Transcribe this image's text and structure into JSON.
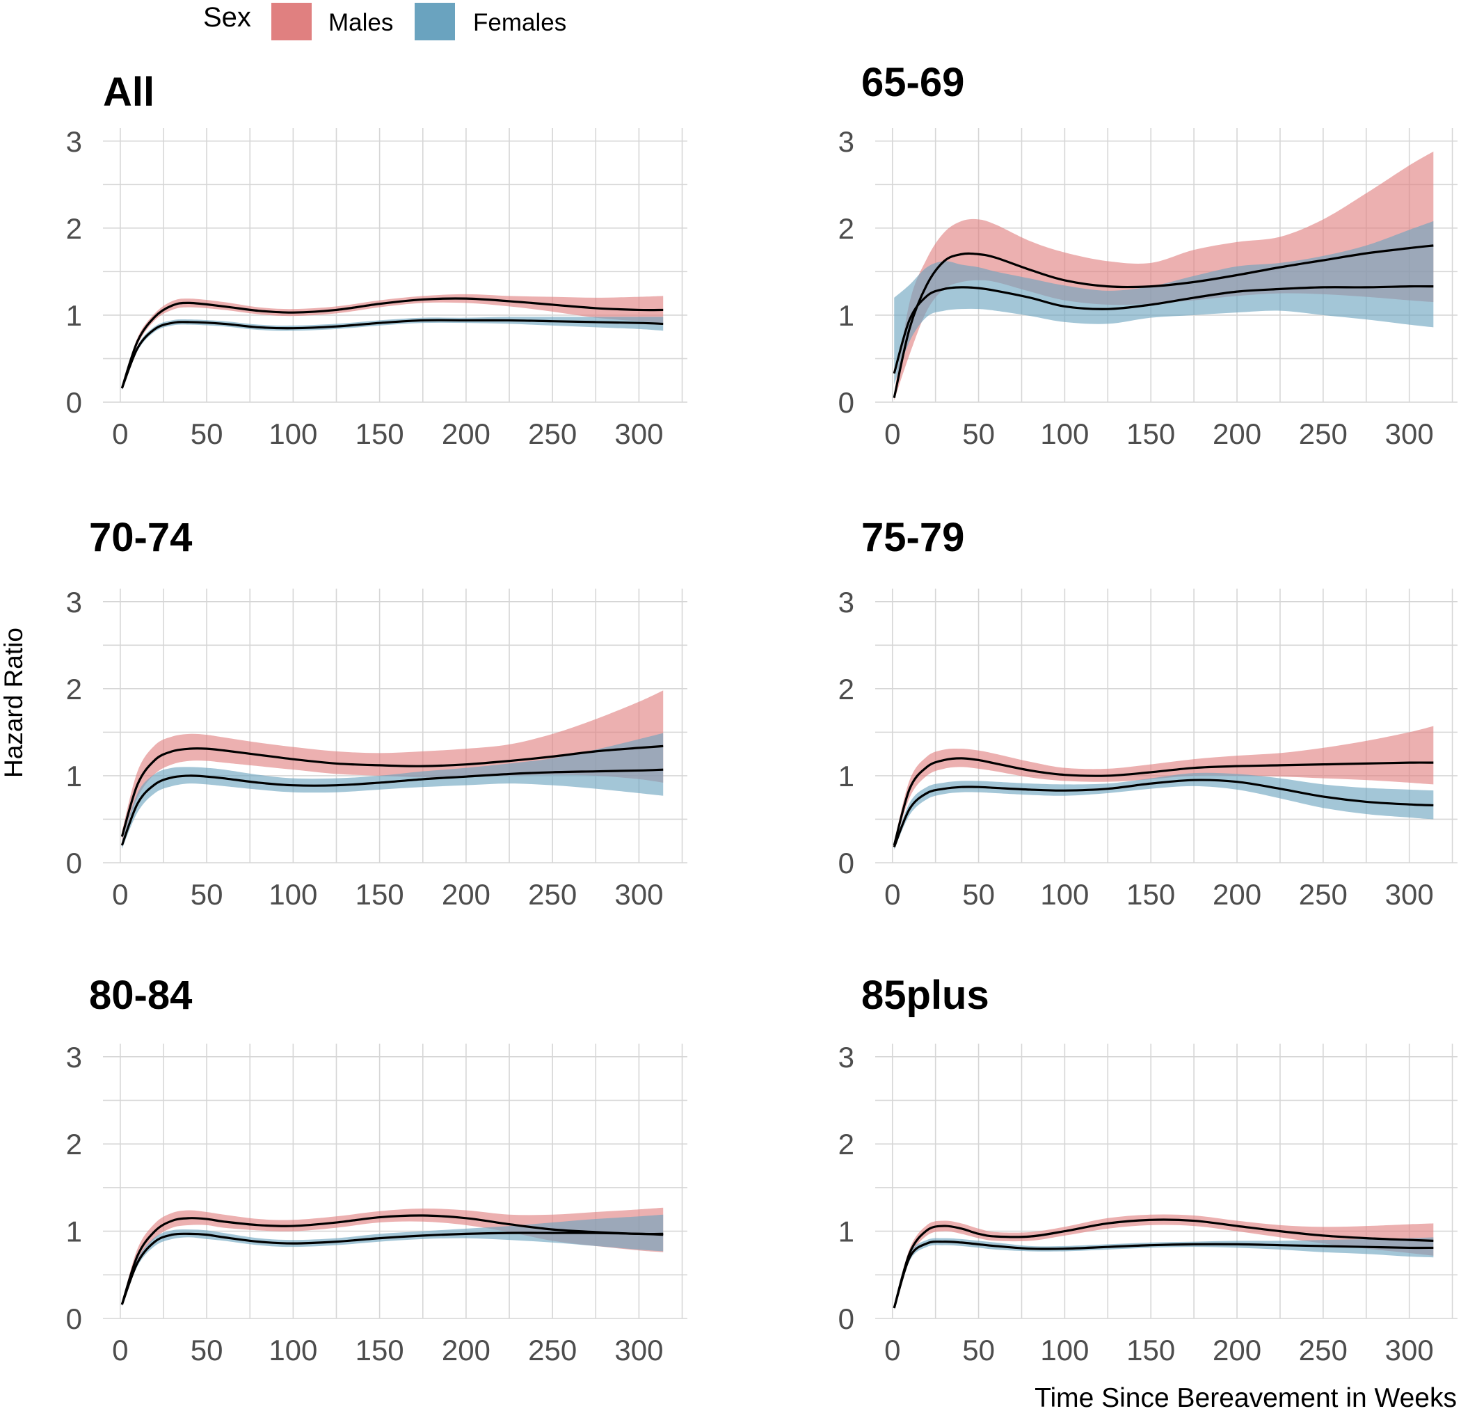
{
  "legend": {
    "title": "Sex",
    "entries": [
      {
        "label": "Males",
        "color": "#E08080"
      },
      {
        "label": "Females",
        "color": "#6AA3BF"
      }
    ]
  },
  "y_axis_title": "Hazard Ratio",
  "x_axis_title": "Time Since Bereavement in Weeks",
  "colors": {
    "male": "#E08080",
    "female": "#6AA3BF",
    "line": "#000000",
    "grid": "#D6D6D6",
    "tick": "#4D4D4D"
  },
  "chart_data": [
    {
      "type": "line",
      "title": "All",
      "xticks": [
        0,
        50,
        100,
        150,
        200,
        250,
        300
      ],
      "yticks": [
        0,
        1,
        2,
        3
      ],
      "xlim": [
        -10,
        328
      ],
      "ylim": [
        0,
        3.15
      ],
      "series": [
        {
          "name": "Males",
          "x": [
            1,
            10,
            20,
            30,
            40,
            60,
            80,
            100,
            125,
            150,
            175,
            200,
            225,
            250,
            275,
            300,
            314
          ],
          "y": [
            0.16,
            0.7,
            0.98,
            1.11,
            1.14,
            1.1,
            1.05,
            1.03,
            1.06,
            1.13,
            1.18,
            1.19,
            1.16,
            1.12,
            1.08,
            1.06,
            1.06
          ],
          "lower": [
            0.14,
            0.66,
            0.94,
            1.06,
            1.09,
            1.06,
            1.01,
            0.99,
            1.02,
            1.09,
            1.14,
            1.14,
            1.1,
            1.04,
            0.97,
            0.93,
            0.91
          ],
          "upper": [
            0.18,
            0.74,
            1.02,
            1.16,
            1.19,
            1.15,
            1.09,
            1.07,
            1.1,
            1.17,
            1.22,
            1.24,
            1.22,
            1.21,
            1.2,
            1.21,
            1.22
          ]
        },
        {
          "name": "Females",
          "x": [
            1,
            10,
            20,
            30,
            40,
            60,
            80,
            100,
            125,
            150,
            175,
            200,
            225,
            250,
            275,
            300,
            314
          ],
          "y": [
            0.16,
            0.62,
            0.84,
            0.91,
            0.92,
            0.9,
            0.86,
            0.85,
            0.87,
            0.91,
            0.94,
            0.94,
            0.94,
            0.93,
            0.92,
            0.91,
            0.9
          ],
          "lower": [
            0.14,
            0.59,
            0.81,
            0.88,
            0.89,
            0.87,
            0.83,
            0.82,
            0.84,
            0.88,
            0.91,
            0.91,
            0.9,
            0.88,
            0.86,
            0.84,
            0.82
          ],
          "upper": [
            0.18,
            0.65,
            0.87,
            0.94,
            0.95,
            0.93,
            0.89,
            0.88,
            0.9,
            0.94,
            0.97,
            0.97,
            0.98,
            0.98,
            0.98,
            0.98,
            0.98
          ]
        }
      ]
    },
    {
      "type": "line",
      "title": "65-69",
      "xticks": [
        0,
        50,
        100,
        150,
        200,
        250,
        300
      ],
      "yticks": [
        0,
        1,
        2,
        3
      ],
      "xlim": [
        -10,
        328
      ],
      "ylim": [
        0,
        3.15
      ],
      "series": [
        {
          "name": "Males",
          "x": [
            1,
            10,
            20,
            30,
            40,
            50,
            60,
            80,
            100,
            125,
            150,
            175,
            200,
            225,
            250,
            275,
            300,
            314
          ],
          "y": [
            0.05,
            0.85,
            1.35,
            1.62,
            1.7,
            1.7,
            1.66,
            1.52,
            1.4,
            1.33,
            1.33,
            1.38,
            1.46,
            1.55,
            1.63,
            1.71,
            1.77,
            1.8
          ],
          "lower": [
            0.02,
            0.55,
            1.05,
            1.3,
            1.38,
            1.4,
            1.38,
            1.27,
            1.17,
            1.12,
            1.13,
            1.17,
            1.22,
            1.25,
            1.24,
            1.21,
            1.17,
            1.15
          ],
          "upper": [
            0.1,
            1.15,
            1.65,
            1.95,
            2.08,
            2.1,
            2.04,
            1.85,
            1.72,
            1.62,
            1.6,
            1.75,
            1.84,
            1.9,
            2.1,
            2.4,
            2.72,
            2.88
          ]
        },
        {
          "name": "Females",
          "x": [
            1,
            10,
            20,
            30,
            40,
            50,
            60,
            80,
            100,
            125,
            150,
            175,
            200,
            225,
            250,
            275,
            300,
            314
          ],
          "y": [
            0.33,
            0.95,
            1.22,
            1.3,
            1.32,
            1.31,
            1.28,
            1.2,
            1.1,
            1.07,
            1.12,
            1.2,
            1.27,
            1.3,
            1.32,
            1.32,
            1.33,
            1.33
          ],
          "lower": [
            0.2,
            0.7,
            0.98,
            1.05,
            1.07,
            1.07,
            1.05,
            0.99,
            0.92,
            0.9,
            0.97,
            1.0,
            1.03,
            1.05,
            1.0,
            0.95,
            0.89,
            0.86
          ],
          "upper": [
            1.2,
            1.35,
            1.55,
            1.62,
            1.58,
            1.55,
            1.5,
            1.42,
            1.34,
            1.28,
            1.33,
            1.45,
            1.56,
            1.6,
            1.68,
            1.8,
            1.98,
            2.08
          ]
        }
      ]
    },
    {
      "type": "line",
      "title": "70-74",
      "xticks": [
        0,
        50,
        100,
        150,
        200,
        250,
        300
      ],
      "yticks": [
        0,
        1,
        2,
        3
      ],
      "xlim": [
        -10,
        328
      ],
      "ylim": [
        0,
        3.15
      ],
      "series": [
        {
          "name": "Males",
          "x": [
            1,
            10,
            20,
            30,
            40,
            50,
            60,
            80,
            100,
            125,
            150,
            175,
            200,
            225,
            250,
            275,
            300,
            314
          ],
          "y": [
            0.3,
            0.9,
            1.18,
            1.28,
            1.31,
            1.31,
            1.29,
            1.24,
            1.19,
            1.14,
            1.12,
            1.11,
            1.13,
            1.17,
            1.22,
            1.28,
            1.32,
            1.34
          ],
          "lower": [
            0.25,
            0.75,
            1.02,
            1.13,
            1.17,
            1.17,
            1.15,
            1.11,
            1.07,
            1.02,
            1.0,
            0.98,
            0.98,
            1.0,
            1.01,
            1.0,
            0.96,
            0.92
          ],
          "upper": [
            0.36,
            1.05,
            1.35,
            1.45,
            1.48,
            1.47,
            1.44,
            1.38,
            1.33,
            1.28,
            1.26,
            1.28,
            1.31,
            1.36,
            1.48,
            1.65,
            1.85,
            1.98
          ]
        },
        {
          "name": "Females",
          "x": [
            1,
            10,
            20,
            30,
            40,
            50,
            60,
            80,
            100,
            125,
            150,
            175,
            200,
            225,
            250,
            275,
            300,
            314
          ],
          "y": [
            0.2,
            0.68,
            0.9,
            0.98,
            1.0,
            0.99,
            0.97,
            0.92,
            0.89,
            0.89,
            0.92,
            0.96,
            0.99,
            1.02,
            1.04,
            1.05,
            1.06,
            1.07
          ],
          "lower": [
            0.16,
            0.58,
            0.8,
            0.88,
            0.91,
            0.9,
            0.88,
            0.84,
            0.81,
            0.81,
            0.84,
            0.87,
            0.89,
            0.91,
            0.89,
            0.85,
            0.8,
            0.77
          ],
          "upper": [
            0.25,
            0.8,
            1.02,
            1.09,
            1.1,
            1.09,
            1.07,
            1.01,
            0.97,
            0.97,
            1.0,
            1.05,
            1.09,
            1.14,
            1.2,
            1.3,
            1.42,
            1.49
          ]
        }
      ]
    },
    {
      "type": "line",
      "title": "75-79",
      "xticks": [
        0,
        50,
        100,
        150,
        200,
        250,
        300
      ],
      "yticks": [
        0,
        1,
        2,
        3
      ],
      "xlim": [
        -10,
        328
      ],
      "ylim": [
        0,
        3.15
      ],
      "series": [
        {
          "name": "Males",
          "x": [
            1,
            10,
            20,
            30,
            40,
            50,
            60,
            80,
            100,
            125,
            150,
            175,
            200,
            225,
            250,
            275,
            300,
            314
          ],
          "y": [
            0.2,
            0.85,
            1.1,
            1.18,
            1.2,
            1.18,
            1.14,
            1.06,
            1.01,
            1.0,
            1.04,
            1.09,
            1.11,
            1.12,
            1.13,
            1.14,
            1.15,
            1.15
          ],
          "lower": [
            0.17,
            0.75,
            1.0,
            1.08,
            1.1,
            1.08,
            1.05,
            0.98,
            0.94,
            0.93,
            0.96,
            1.0,
            1.0,
            0.99,
            0.97,
            0.95,
            0.92,
            0.9
          ],
          "upper": [
            0.24,
            0.95,
            1.22,
            1.3,
            1.31,
            1.29,
            1.25,
            1.16,
            1.09,
            1.08,
            1.13,
            1.19,
            1.23,
            1.26,
            1.32,
            1.4,
            1.5,
            1.57
          ]
        },
        {
          "name": "Females",
          "x": [
            1,
            10,
            20,
            30,
            40,
            50,
            60,
            80,
            100,
            125,
            150,
            175,
            200,
            225,
            250,
            275,
            300,
            314
          ],
          "y": [
            0.18,
            0.62,
            0.8,
            0.85,
            0.87,
            0.87,
            0.86,
            0.84,
            0.83,
            0.85,
            0.91,
            0.95,
            0.93,
            0.85,
            0.76,
            0.7,
            0.67,
            0.66
          ],
          "lower": [
            0.15,
            0.55,
            0.73,
            0.79,
            0.81,
            0.81,
            0.8,
            0.78,
            0.77,
            0.8,
            0.85,
            0.88,
            0.84,
            0.74,
            0.63,
            0.56,
            0.52,
            0.5
          ],
          "upper": [
            0.21,
            0.69,
            0.87,
            0.92,
            0.94,
            0.94,
            0.93,
            0.91,
            0.9,
            0.91,
            0.97,
            1.03,
            1.02,
            0.97,
            0.9,
            0.86,
            0.84,
            0.83
          ]
        }
      ]
    },
    {
      "type": "line",
      "title": "80-84",
      "xticks": [
        0,
        50,
        100,
        150,
        200,
        250,
        300
      ],
      "yticks": [
        0,
        1,
        2,
        3
      ],
      "xlim": [
        -10,
        328
      ],
      "ylim": [
        0,
        3.15
      ],
      "series": [
        {
          "name": "Males",
          "x": [
            1,
            10,
            20,
            30,
            40,
            50,
            60,
            80,
            100,
            125,
            150,
            175,
            200,
            225,
            250,
            275,
            300,
            314
          ],
          "y": [
            0.16,
            0.72,
            1.0,
            1.12,
            1.15,
            1.14,
            1.11,
            1.07,
            1.06,
            1.1,
            1.16,
            1.18,
            1.15,
            1.08,
            1.02,
            0.99,
            0.97,
            0.97
          ],
          "lower": [
            0.14,
            0.66,
            0.92,
            1.04,
            1.07,
            1.07,
            1.04,
            1.01,
            1.0,
            1.04,
            1.1,
            1.11,
            1.07,
            0.99,
            0.89,
            0.83,
            0.78,
            0.76
          ],
          "upper": [
            0.18,
            0.8,
            1.09,
            1.21,
            1.24,
            1.22,
            1.19,
            1.14,
            1.13,
            1.17,
            1.23,
            1.26,
            1.24,
            1.19,
            1.19,
            1.22,
            1.25,
            1.27
          ]
        },
        {
          "name": "Females",
          "x": [
            1,
            10,
            20,
            30,
            40,
            50,
            60,
            80,
            100,
            125,
            150,
            175,
            200,
            225,
            250,
            275,
            300,
            314
          ],
          "y": [
            0.16,
            0.64,
            0.88,
            0.96,
            0.97,
            0.96,
            0.93,
            0.88,
            0.86,
            0.88,
            0.92,
            0.95,
            0.97,
            0.98,
            0.98,
            0.98,
            0.97,
            0.96
          ],
          "lower": [
            0.14,
            0.6,
            0.83,
            0.91,
            0.93,
            0.91,
            0.89,
            0.84,
            0.82,
            0.84,
            0.88,
            0.91,
            0.92,
            0.9,
            0.87,
            0.83,
            0.79,
            0.77
          ],
          "upper": [
            0.18,
            0.68,
            0.93,
            1.01,
            1.02,
            1.01,
            0.98,
            0.92,
            0.9,
            0.92,
            0.97,
            1.0,
            1.03,
            1.06,
            1.1,
            1.14,
            1.17,
            1.19
          ]
        }
      ]
    },
    {
      "type": "line",
      "title": "85plus",
      "xticks": [
        0,
        50,
        100,
        150,
        200,
        250,
        300
      ],
      "yticks": [
        0,
        1,
        2,
        3
      ],
      "xlim": [
        -10,
        328
      ],
      "ylim": [
        0,
        3.15
      ],
      "series": [
        {
          "name": "Males",
          "x": [
            1,
            10,
            20,
            30,
            40,
            50,
            60,
            80,
            100,
            125,
            150,
            175,
            200,
            225,
            250,
            275,
            300,
            314
          ],
          "y": [
            0.12,
            0.75,
            1.01,
            1.06,
            1.03,
            0.97,
            0.94,
            0.94,
            1.0,
            1.09,
            1.13,
            1.12,
            1.06,
            1.0,
            0.95,
            0.92,
            0.9,
            0.89
          ],
          "lower": [
            0.1,
            0.7,
            0.95,
            1.0,
            0.97,
            0.92,
            0.89,
            0.89,
            0.95,
            1.03,
            1.07,
            1.06,
            1.0,
            0.93,
            0.86,
            0.8,
            0.75,
            0.72
          ],
          "upper": [
            0.14,
            0.8,
            1.07,
            1.12,
            1.09,
            1.03,
            0.99,
            0.99,
            1.05,
            1.15,
            1.19,
            1.18,
            1.12,
            1.07,
            1.05,
            1.06,
            1.08,
            1.09
          ]
        },
        {
          "name": "Females",
          "x": [
            1,
            10,
            20,
            30,
            40,
            50,
            60,
            80,
            100,
            125,
            150,
            175,
            200,
            225,
            250,
            275,
            300,
            314
          ],
          "y": [
            0.12,
            0.7,
            0.86,
            0.88,
            0.87,
            0.85,
            0.83,
            0.8,
            0.8,
            0.82,
            0.84,
            0.85,
            0.85,
            0.84,
            0.83,
            0.82,
            0.81,
            0.81
          ],
          "lower": [
            0.1,
            0.66,
            0.82,
            0.84,
            0.83,
            0.81,
            0.79,
            0.77,
            0.77,
            0.79,
            0.81,
            0.82,
            0.81,
            0.79,
            0.76,
            0.74,
            0.71,
            0.7
          ],
          "upper": [
            0.14,
            0.74,
            0.9,
            0.92,
            0.91,
            0.89,
            0.87,
            0.83,
            0.83,
            0.85,
            0.87,
            0.88,
            0.89,
            0.89,
            0.9,
            0.91,
            0.92,
            0.93
          ]
        }
      ]
    }
  ]
}
